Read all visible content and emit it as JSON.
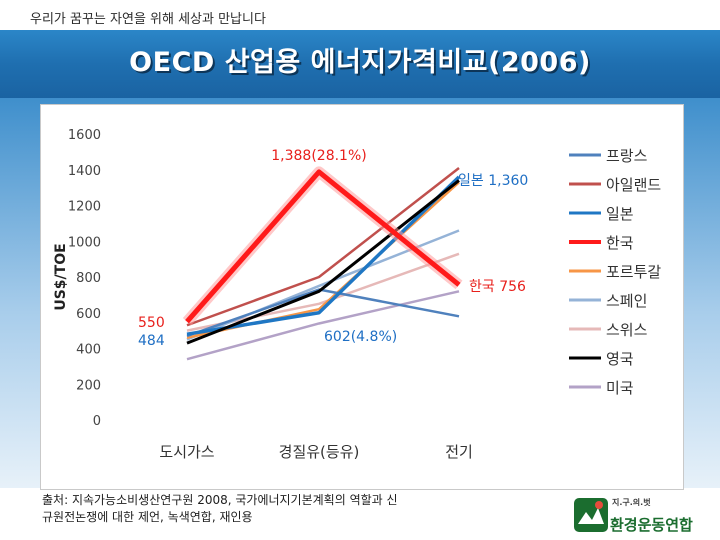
{
  "header": {
    "slogan": "우리가 꿈꾸는 자연을 위해 세상과 만납니다",
    "title": "OECD 산업용 에너지가격비교(2006)"
  },
  "chart_data": {
    "type": "line",
    "title": "OECD 산업용 에너지가격비교(2006)",
    "xlabel": "",
    "ylabel": "US$/TOE",
    "categories": [
      "도시가스",
      "경질유(등유)",
      "전기"
    ],
    "ylim": [
      0,
      1600
    ],
    "yticks": [
      0,
      200,
      400,
      600,
      800,
      1000,
      1200,
      1400,
      1600
    ],
    "grid": false,
    "legend_position": "right",
    "series": [
      {
        "name": "프랑스",
        "color": "#4f81bd",
        "values": [
          470,
          730,
          580
        ]
      },
      {
        "name": "아일랜드",
        "color": "#c0504d",
        "values": [
          530,
          800,
          1410
        ]
      },
      {
        "name": "일본",
        "color": "#1f77c4",
        "values": [
          480,
          600,
          1360
        ]
      },
      {
        "name": "한국",
        "color": "#ff1a1a",
        "values": [
          550,
          1388,
          756
        ]
      },
      {
        "name": "포르투갈",
        "color": "#f79646",
        "values": [
          460,
          620,
          1330
        ]
      },
      {
        "name": "스페인",
        "color": "#95b3d7",
        "values": [
          450,
          750,
          1060
        ]
      },
      {
        "name": "스위스",
        "color": "#e6b9b8",
        "values": [
          500,
          650,
          930
        ]
      },
      {
        "name": "영국",
        "color": "#000000",
        "values": [
          430,
          720,
          1340
        ]
      },
      {
        "name": "미국",
        "color": "#b3a2c7",
        "values": [
          340,
          540,
          720
        ]
      }
    ],
    "annotations": {
      "korea_oil": "1,388(28.1%)",
      "japan_elec": "일본 1,360",
      "korea_elec": "한국 756",
      "korea_gas": "550",
      "japan_gas": "484",
      "japan_oil": "602(4.8%)"
    }
  },
  "footer": {
    "source_line1": "출처: 지속가능소비생산연구원 2008, 국가에너지기본계획의 역할과 신",
    "source_line2": "규원전논쟁에 대한 제언, 녹색연합, 재인용",
    "logo_small": "지.구.의.벗",
    "logo_name": "환경운동연합"
  }
}
